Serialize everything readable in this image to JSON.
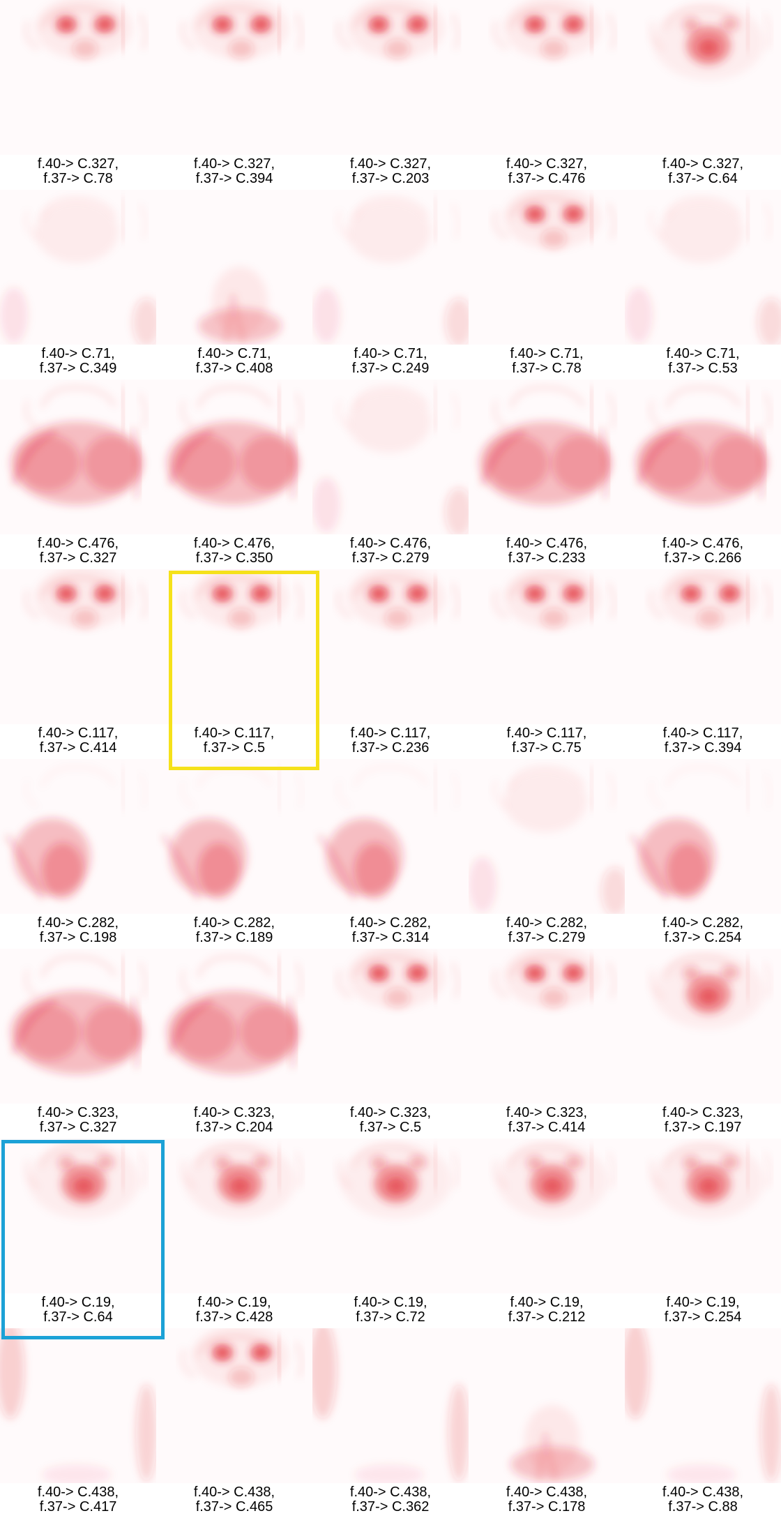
{
  "rows": [
    {
      "f40": "f.40-> C.327,",
      "items": [
        {
          "f37": "f.37-> C.78",
          "map": "face"
        },
        {
          "f37": "f.37-> C.394",
          "map": "face"
        },
        {
          "f37": "f.37-> C.203",
          "map": "face"
        },
        {
          "f37": "f.37-> C.476",
          "map": "face"
        },
        {
          "f37": "f.37-> C.64",
          "map": "nose"
        }
      ]
    },
    {
      "f40": "f.40-> C.71,",
      "items": [
        {
          "f37": "f.37-> C.349",
          "map": "faint"
        },
        {
          "f37": "f.37-> C.408",
          "map": "bottom"
        },
        {
          "f37": "f.37-> C.249",
          "map": "faint"
        },
        {
          "f37": "f.37-> C.78",
          "map": "face"
        },
        {
          "f37": "f.37-> C.53",
          "map": "faint"
        }
      ]
    },
    {
      "f40": "f.40-> C.476,",
      "items": [
        {
          "f37": "f.37-> C.327",
          "map": "body"
        },
        {
          "f37": "f.37-> C.350",
          "map": "body"
        },
        {
          "f37": "f.37-> C.279",
          "map": "faint"
        },
        {
          "f37": "f.37-> C.233",
          "map": "body"
        },
        {
          "f37": "f.37-> C.266",
          "map": "body"
        }
      ]
    },
    {
      "f40": "f.40-> C.117,",
      "items": [
        {
          "f37": "f.37-> C.414",
          "map": "face"
        },
        {
          "f37": "f.37-> C.5",
          "map": "face"
        },
        {
          "f37": "f.37-> C.236",
          "map": "face"
        },
        {
          "f37": "f.37-> C.75",
          "map": "face"
        },
        {
          "f37": "f.37-> C.394",
          "map": "face"
        }
      ]
    },
    {
      "f40": "f.40-> C.282,",
      "items": [
        {
          "f37": "f.37-> C.198",
          "map": "chest"
        },
        {
          "f37": "f.37-> C.189",
          "map": "chest"
        },
        {
          "f37": "f.37-> C.314",
          "map": "chest"
        },
        {
          "f37": "f.37-> C.279",
          "map": "faint"
        },
        {
          "f37": "f.37-> C.254",
          "map": "chest"
        }
      ]
    },
    {
      "f40": "f.40-> C.323,",
      "items": [
        {
          "f37": "f.37-> C.327",
          "map": "body"
        },
        {
          "f37": "f.37-> C.204",
          "map": "body"
        },
        {
          "f37": "f.37-> C.5",
          "map": "face"
        },
        {
          "f37": "f.37-> C.414",
          "map": "face"
        },
        {
          "f37": "f.37-> C.197",
          "map": "nose"
        }
      ]
    },
    {
      "f40": "f.40-> C.19,",
      "items": [
        {
          "f37": "f.37-> C.64",
          "map": "nose"
        },
        {
          "f37": "f.37-> C.428",
          "map": "nose"
        },
        {
          "f37": "f.37-> C.72",
          "map": "nose"
        },
        {
          "f37": "f.37-> C.212",
          "map": "nose"
        },
        {
          "f37": "f.37-> C.254",
          "map": "nose"
        }
      ]
    },
    {
      "f40": "f.40-> C.438,",
      "items": [
        {
          "f37": "f.37-> C.417",
          "map": "edges"
        },
        {
          "f37": "f.37-> C.465",
          "map": "face"
        },
        {
          "f37": "f.37-> C.362",
          "map": "edges"
        },
        {
          "f37": "f.37-> C.178",
          "map": "bottom"
        },
        {
          "f37": "f.37-> C.88",
          "map": "edges"
        }
      ]
    }
  ],
  "highlights": [
    {
      "row": 3,
      "col": 1,
      "color": "#f5e11a",
      "name": "yellow-highlight-box"
    },
    {
      "row": 6,
      "col": 0,
      "color": "#1ca1d6",
      "name": "blue-highlight-box"
    }
  ],
  "colors": {
    "heat": "#e0202e",
    "background": "#ffffff"
  }
}
